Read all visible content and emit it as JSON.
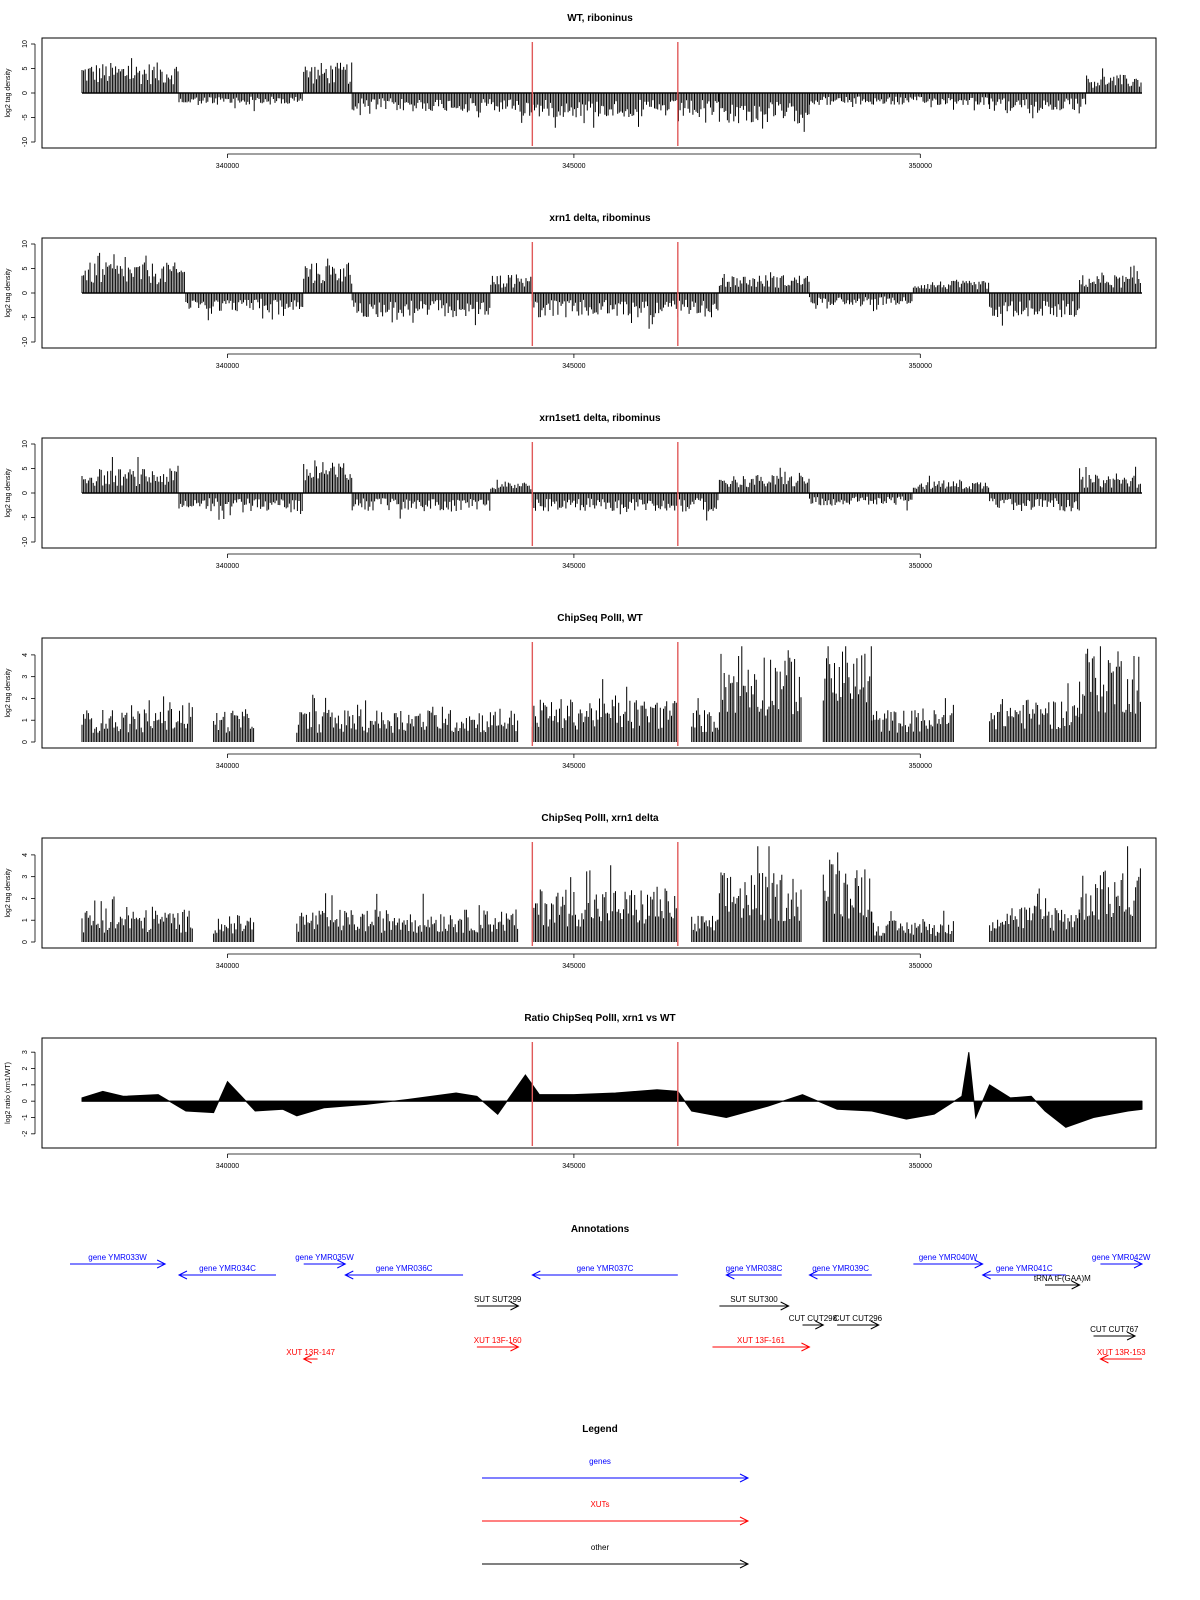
{
  "figure": {
    "colors": {
      "signal": "#000000",
      "marker": "#e05a5a",
      "genes": "#0000ff",
      "xuts": "#ff0000",
      "other": "#000000"
    }
  },
  "chart_data": [
    {
      "type": "bar",
      "title": "WT, riboninus",
      "ylabel": "log2 tag density",
      "xlim": [
        337900,
        353200
      ],
      "ylim": [
        -10,
        10
      ],
      "yticks": [
        "10",
        "5",
        "0",
        "-5",
        "-10"
      ],
      "xticks": [
        "340000",
        "345000",
        "350000"
      ],
      "baseline": "zero",
      "markers_x": [
        344400,
        346500
      ],
      "segments": [
        {
          "from": 337900,
          "to": 339300,
          "level": 5
        },
        {
          "from": 339300,
          "to": 341100,
          "level": -2
        },
        {
          "from": 341100,
          "to": 341800,
          "level": 5
        },
        {
          "from": 341800,
          "to": 344200,
          "level": -3
        },
        {
          "from": 344200,
          "to": 347100,
          "level": -4
        },
        {
          "from": 347100,
          "to": 348400,
          "level": -5
        },
        {
          "from": 348400,
          "to": 351000,
          "level": -2
        },
        {
          "from": 351000,
          "to": 352400,
          "level": -3
        },
        {
          "from": 352400,
          "to": 353200,
          "level": 3
        }
      ]
    },
    {
      "type": "bar",
      "title": "xrn1 delta, ribominus",
      "ylabel": "log2 tag density",
      "xlim": [
        337900,
        353200
      ],
      "ylim": [
        -10,
        10
      ],
      "yticks": [
        "10",
        "5",
        "0",
        "-5",
        "-10"
      ],
      "xticks": [
        "340000",
        "345000",
        "350000"
      ],
      "baseline": "zero",
      "markers_x": [
        344400,
        346500
      ],
      "segments": [
        {
          "from": 337900,
          "to": 339400,
          "level": 5
        },
        {
          "from": 339400,
          "to": 341100,
          "level": -3
        },
        {
          "from": 341100,
          "to": 341800,
          "level": 5
        },
        {
          "from": 341800,
          "to": 343800,
          "level": -4
        },
        {
          "from": 343800,
          "to": 344400,
          "level": 3
        },
        {
          "from": 344400,
          "to": 347100,
          "level": -4
        },
        {
          "from": 347100,
          "to": 348400,
          "level": 3
        },
        {
          "from": 348400,
          "to": 349900,
          "level": -2
        },
        {
          "from": 349900,
          "to": 351000,
          "level": 2
        },
        {
          "from": 351000,
          "to": 352300,
          "level": -4
        },
        {
          "from": 352300,
          "to": 353200,
          "level": 3
        }
      ]
    },
    {
      "type": "bar",
      "title": "xrn1set1 delta, ribominus",
      "ylabel": "log2 tag density",
      "xlim": [
        337900,
        353200
      ],
      "ylim": [
        -10,
        10
      ],
      "yticks": [
        "10",
        "5",
        "0",
        "-5",
        "-10"
      ],
      "xticks": [
        "340000",
        "345000",
        "350000"
      ],
      "baseline": "zero",
      "markers_x": [
        344400,
        346500
      ],
      "segments": [
        {
          "from": 337900,
          "to": 339300,
          "level": 4
        },
        {
          "from": 339300,
          "to": 341100,
          "level": -3
        },
        {
          "from": 341100,
          "to": 341800,
          "level": 5
        },
        {
          "from": 341800,
          "to": 343800,
          "level": -3
        },
        {
          "from": 343800,
          "to": 344400,
          "level": 2
        },
        {
          "from": 344400,
          "to": 347100,
          "level": -3
        },
        {
          "from": 347100,
          "to": 348400,
          "level": 3
        },
        {
          "from": 348400,
          "to": 349900,
          "level": -2
        },
        {
          "from": 349900,
          "to": 351000,
          "level": 2
        },
        {
          "from": 351000,
          "to": 352300,
          "level": -3
        },
        {
          "from": 352300,
          "to": 353200,
          "level": 3
        }
      ]
    },
    {
      "type": "bar",
      "title": "ChipSeq PolII, WT",
      "ylabel": "log2 tag density",
      "xlim": [
        337900,
        353200
      ],
      "ylim": [
        0,
        4.5
      ],
      "yticks": [
        "4",
        "3",
        "2",
        "1",
        "0"
      ],
      "xticks": [
        "340000",
        "345000",
        "350000"
      ],
      "baseline": "bottom",
      "markers_x": [
        344400,
        346500
      ],
      "segments": [
        {
          "from": 337900,
          "to": 339100,
          "level": 1.2
        },
        {
          "from": 339100,
          "to": 339500,
          "level": 1.5
        },
        {
          "from": 339500,
          "to": 339800,
          "level": 0
        },
        {
          "from": 339800,
          "to": 340400,
          "level": 1.2
        },
        {
          "from": 340400,
          "to": 341000,
          "level": 0
        },
        {
          "from": 341000,
          "to": 344200,
          "level": 1.2
        },
        {
          "from": 344200,
          "to": 344400,
          "level": 0
        },
        {
          "from": 344400,
          "to": 346500,
          "level": 1.6
        },
        {
          "from": 346500,
          "to": 346700,
          "level": 0
        },
        {
          "from": 346700,
          "to": 347100,
          "level": 1.2
        },
        {
          "from": 347100,
          "to": 348300,
          "level": 3.4
        },
        {
          "from": 348300,
          "to": 348600,
          "level": 0
        },
        {
          "from": 348600,
          "to": 349300,
          "level": 3.6
        },
        {
          "from": 349300,
          "to": 350500,
          "level": 1.2
        },
        {
          "from": 350500,
          "to": 351000,
          "level": 0
        },
        {
          "from": 351000,
          "to": 352300,
          "level": 1.6
        },
        {
          "from": 352300,
          "to": 353200,
          "level": 3.6
        }
      ]
    },
    {
      "type": "bar",
      "title": "ChipSeq PolII, xrn1 delta",
      "ylabel": "log2 tag density",
      "xlim": [
        337900,
        353200
      ],
      "ylim": [
        0,
        4.5
      ],
      "yticks": [
        "4",
        "3",
        "2",
        "1",
        "0"
      ],
      "xticks": [
        "340000",
        "345000",
        "350000"
      ],
      "baseline": "bottom",
      "markers_x": [
        344400,
        346500
      ],
      "segments": [
        {
          "from": 337900,
          "to": 339100,
          "level": 1.2
        },
        {
          "from": 339100,
          "to": 339500,
          "level": 1.2
        },
        {
          "from": 339500,
          "to": 339800,
          "level": 0
        },
        {
          "from": 339800,
          "to": 340400,
          "level": 1.0
        },
        {
          "from": 340400,
          "to": 341000,
          "level": 0
        },
        {
          "from": 341000,
          "to": 344200,
          "level": 1.2
        },
        {
          "from": 344200,
          "to": 344400,
          "level": 0
        },
        {
          "from": 344400,
          "to": 346500,
          "level": 2.0
        },
        {
          "from": 346500,
          "to": 346700,
          "level": 0
        },
        {
          "from": 346700,
          "to": 347100,
          "level": 1.0
        },
        {
          "from": 347100,
          "to": 348300,
          "level": 2.6
        },
        {
          "from": 348300,
          "to": 348600,
          "level": 0
        },
        {
          "from": 348600,
          "to": 349300,
          "level": 3.0
        },
        {
          "from": 349300,
          "to": 350500,
          "level": 0.8
        },
        {
          "from": 350500,
          "to": 351000,
          "level": 0
        },
        {
          "from": 351000,
          "to": 352300,
          "level": 1.4
        },
        {
          "from": 352300,
          "to": 353200,
          "level": 2.6
        }
      ]
    },
    {
      "type": "area",
      "title": "Ratio ChipSeq PolII, xrn1 vs WT",
      "ylabel": "log2 ratio (xrn1/WT)",
      "xlim": [
        337900,
        353200
      ],
      "ylim": [
        -2.5,
        3.5
      ],
      "yticks": [
        "3",
        "2",
        "1",
        "0",
        "-1",
        "-2"
      ],
      "xticks": [
        "340000",
        "345000",
        "350000"
      ],
      "baseline": "zero",
      "markers_x": [
        344400,
        346500
      ],
      "x": [
        337900,
        338200,
        338500,
        339000,
        339400,
        339800,
        340000,
        340400,
        340800,
        341000,
        341400,
        342000,
        342600,
        343300,
        343600,
        343900,
        344300,
        344500,
        345000,
        345600,
        346200,
        346500,
        346700,
        347200,
        347800,
        348300,
        348800,
        349300,
        349800,
        350200,
        350600,
        350700,
        350800,
        351000,
        351300,
        351600,
        351800,
        352100,
        352500,
        353000,
        353200
      ],
      "y": [
        0.2,
        0.6,
        0.3,
        0.4,
        -0.6,
        -0.7,
        1.2,
        -0.6,
        -0.5,
        -0.9,
        -0.4,
        -0.2,
        0.1,
        0.5,
        0.3,
        -0.8,
        1.6,
        0.4,
        0.4,
        0.5,
        0.7,
        0.6,
        -0.6,
        -1.0,
        -0.3,
        0.4,
        -0.5,
        -0.6,
        -1.1,
        -0.8,
        0.3,
        3.0,
        -1.0,
        1.0,
        0.2,
        0.3,
        -0.6,
        -1.6,
        -1.0,
        -0.6,
        -0.5
      ]
    }
  ],
  "annotations": {
    "title": "Annotations",
    "items": [
      {
        "label": "gene YMR033W",
        "start": 337600,
        "end": 339100,
        "row": 0,
        "kind": "genes"
      },
      {
        "label": "gene YMR034C",
        "start": 339300,
        "end": 340700,
        "row": 1,
        "kind": "genes"
      },
      {
        "label": "gene YMR035W",
        "start": 341100,
        "end": 341700,
        "row": 0,
        "kind": "genes"
      },
      {
        "label": "gene YMR036C",
        "start": 341700,
        "end": 343400,
        "row": 1,
        "kind": "genes"
      },
      {
        "label": "gene YMR037C",
        "start": 344400,
        "end": 346500,
        "row": 1,
        "kind": "genes"
      },
      {
        "label": "gene YMR038C",
        "start": 347200,
        "end": 348000,
        "row": 1,
        "kind": "genes"
      },
      {
        "label": "gene YMR039C",
        "start": 348400,
        "end": 349300,
        "row": 1,
        "kind": "genes"
      },
      {
        "label": "gene YMR040W",
        "start": 349900,
        "end": 350900,
        "row": 0,
        "kind": "genes"
      },
      {
        "label": "gene YMR041C",
        "start": 350900,
        "end": 352100,
        "row": 1,
        "kind": "genes"
      },
      {
        "label": "gene YMR042W",
        "start": 352600,
        "end": 353200,
        "row": 0,
        "kind": "genes"
      },
      {
        "label": "tRNA tF(GAA)M",
        "start": 351800,
        "end": 352300,
        "row": 2,
        "kind": "other"
      },
      {
        "label": "SUT SUT299",
        "start": 343600,
        "end": 344200,
        "row": 3,
        "kind": "other"
      },
      {
        "label": "SUT SUT300",
        "start": 347100,
        "end": 348100,
        "row": 3,
        "kind": "other"
      },
      {
        "label": "CUT CUT298",
        "start": 348300,
        "end": 348600,
        "row": 4,
        "kind": "other"
      },
      {
        "label": "CUT CUT296",
        "start": 348800,
        "end": 349400,
        "row": 4,
        "kind": "other"
      },
      {
        "label": "CUT CUT767",
        "start": 352500,
        "end": 353100,
        "row": 5,
        "kind": "other"
      },
      {
        "label": "XUT 13F-160",
        "start": 343600,
        "end": 344200,
        "row": 6,
        "kind": "xuts"
      },
      {
        "label": "XUT 13F-161",
        "start": 347000,
        "end": 348400,
        "row": 6,
        "kind": "xuts"
      },
      {
        "label": "XUT 13R-147",
        "start": 341100,
        "end": 341300,
        "row": 7,
        "kind": "xuts"
      },
      {
        "label": "XUT 13R-153",
        "start": 352600,
        "end": 353200,
        "row": 7,
        "kind": "xuts"
      }
    ]
  },
  "legend": {
    "title": "Legend",
    "entries": [
      {
        "label": "genes",
        "kind": "genes"
      },
      {
        "label": "XUTs",
        "kind": "xuts"
      },
      {
        "label": "other",
        "kind": "other"
      }
    ]
  }
}
